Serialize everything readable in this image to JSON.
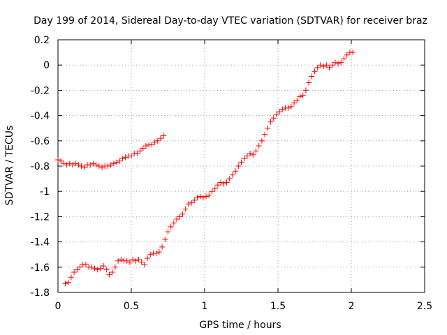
{
  "chart_data": {
    "type": "scatter",
    "title": "Day 199 of 2014, Sidereal Day-to-day VTEC variation (SDTVAR) for receiver braz",
    "xlabel": "GPS time / hours",
    "ylabel": "SDTVAR / TECUs",
    "xlim": [
      0,
      2.5
    ],
    "ylim": [
      -1.8,
      0.2
    ],
    "xticks": [
      "0",
      "0.5",
      "1",
      "1.5",
      "2",
      "2.5"
    ],
    "yticks": [
      "0.2",
      "0",
      "-0.2",
      "-0.4",
      "-0.6",
      "-0.8",
      "-1",
      "-1.2",
      "-1.4",
      "-1.6",
      "-1.8"
    ],
    "grid": true,
    "marker": "plus",
    "marker_color": "#ff0000",
    "series": [
      {
        "x": [
          0.0,
          0.02,
          0.04,
          0.06,
          0.08,
          0.1,
          0.12,
          0.14,
          0.16,
          0.18,
          0.2,
          0.22,
          0.24,
          0.26,
          0.28,
          0.3,
          0.32,
          0.34,
          0.36,
          0.38,
          0.4,
          0.42,
          0.44,
          0.46,
          0.48,
          0.5,
          0.52,
          0.54,
          0.56,
          0.58,
          0.6,
          0.62,
          0.64,
          0.66,
          0.68,
          0.7,
          0.72
        ],
        "y": [
          -0.75,
          -0.76,
          -0.78,
          -0.79,
          -0.78,
          -0.79,
          -0.78,
          -0.79,
          -0.8,
          -0.81,
          -0.79,
          -0.79,
          -0.78,
          -0.79,
          -0.8,
          -0.81,
          -0.8,
          -0.8,
          -0.79,
          -0.78,
          -0.77,
          -0.76,
          -0.74,
          -0.73,
          -0.72,
          -0.72,
          -0.7,
          -0.7,
          -0.68,
          -0.66,
          -0.64,
          -0.63,
          -0.63,
          -0.61,
          -0.6,
          -0.58,
          -0.56
        ]
      },
      {
        "x": [
          0.05,
          0.07,
          0.09,
          0.11,
          0.13,
          0.15,
          0.17,
          0.19,
          0.21,
          0.23,
          0.25,
          0.27,
          0.29,
          0.31,
          0.33,
          0.35,
          0.37,
          0.39,
          0.41,
          0.43,
          0.45,
          0.47,
          0.49,
          0.51,
          0.53,
          0.55,
          0.57,
          0.59,
          0.61,
          0.63,
          0.65,
          0.67,
          0.69,
          0.71,
          0.73,
          0.75,
          0.77,
          0.79,
          0.81,
          0.83,
          0.85,
          0.87,
          0.89,
          0.91,
          0.93,
          0.95,
          0.97,
          0.99,
          1.01,
          1.03,
          1.05,
          1.07,
          1.09,
          1.11,
          1.13,
          1.15,
          1.17,
          1.19,
          1.21,
          1.23,
          1.25,
          1.27,
          1.29,
          1.31,
          1.33,
          1.35,
          1.37,
          1.39,
          1.41,
          1.43,
          1.45,
          1.47,
          1.49,
          1.51,
          1.53,
          1.55,
          1.57,
          1.59,
          1.61,
          1.63,
          1.65,
          1.67,
          1.69,
          1.71,
          1.73,
          1.75,
          1.77,
          1.79,
          1.81,
          1.83,
          1.85,
          1.87,
          1.89,
          1.91,
          1.93,
          1.95,
          1.97,
          1.99,
          2.01
        ],
        "y": [
          -1.73,
          -1.72,
          -1.68,
          -1.64,
          -1.62,
          -1.6,
          -1.58,
          -1.58,
          -1.6,
          -1.6,
          -1.61,
          -1.62,
          -1.61,
          -1.59,
          -1.62,
          -1.66,
          -1.64,
          -1.6,
          -1.55,
          -1.54,
          -1.55,
          -1.55,
          -1.56,
          -1.54,
          -1.55,
          -1.54,
          -1.56,
          -1.58,
          -1.53,
          -1.5,
          -1.49,
          -1.49,
          -1.48,
          -1.44,
          -1.38,
          -1.32,
          -1.28,
          -1.25,
          -1.22,
          -1.2,
          -1.18,
          -1.14,
          -1.1,
          -1.09,
          -1.07,
          -1.05,
          -1.04,
          -1.05,
          -1.04,
          -1.03,
          -1.0,
          -0.98,
          -0.95,
          -0.93,
          -0.94,
          -0.93,
          -0.9,
          -0.87,
          -0.84,
          -0.8,
          -0.77,
          -0.74,
          -0.72,
          -0.7,
          -0.71,
          -0.68,
          -0.64,
          -0.6,
          -0.55,
          -0.5,
          -0.45,
          -0.42,
          -0.39,
          -0.37,
          -0.35,
          -0.34,
          -0.34,
          -0.33,
          -0.3,
          -0.28,
          -0.25,
          -0.24,
          -0.2,
          -0.14,
          -0.09,
          -0.05,
          -0.02,
          0.0,
          -0.01,
          0.0,
          -0.02,
          0.0,
          0.02,
          0.01,
          0.02,
          0.05,
          0.08,
          0.1,
          0.1
        ]
      }
    ]
  }
}
